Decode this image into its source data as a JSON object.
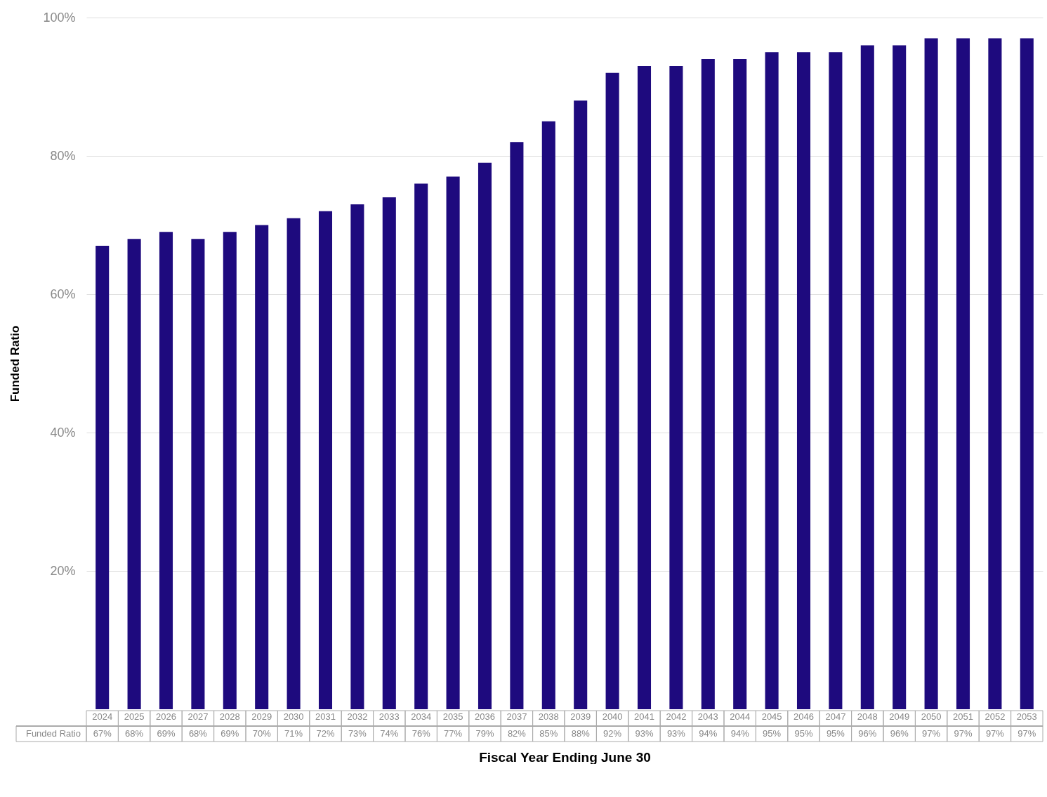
{
  "chart_data": {
    "type": "bar",
    "xlabel": "Fiscal Year Ending June 30",
    "ylabel": "Funded Ratio",
    "categories": [
      "2024",
      "2025",
      "2026",
      "2027",
      "2028",
      "2029",
      "2030",
      "2031",
      "2032",
      "2033",
      "2034",
      "2035",
      "2036",
      "2037",
      "2038",
      "2039",
      "2040",
      "2041",
      "2042",
      "2043",
      "2044",
      "2045",
      "2046",
      "2047",
      "2048",
      "2049",
      "2050",
      "2051",
      "2052",
      "2053"
    ],
    "series": [
      {
        "name": "Funded Ratio",
        "color": "#1e0a7e",
        "values": [
          67,
          68,
          69,
          68,
          69,
          70,
          71,
          72,
          73,
          74,
          76,
          77,
          79,
          82,
          85,
          88,
          92,
          93,
          93,
          94,
          94,
          95,
          95,
          95,
          96,
          96,
          97,
          97,
          97,
          97
        ],
        "value_labels": [
          "67%",
          "68%",
          "69%",
          "68%",
          "69%",
          "70%",
          "71%",
          "72%",
          "73%",
          "74%",
          "76%",
          "77%",
          "79%",
          "82%",
          "85%",
          "88%",
          "92%",
          "93%",
          "93%",
          "94%",
          "94%",
          "95%",
          "95%",
          "95%",
          "96%",
          "96%",
          "97%",
          "97%",
          "97%",
          "97%"
        ]
      }
    ],
    "ylim": [
      0,
      100
    ],
    "yticks": [
      {
        "value": 20,
        "label": "20%"
      },
      {
        "value": 40,
        "label": "40%"
      },
      {
        "value": 60,
        "label": "60%"
      },
      {
        "value": 80,
        "label": "80%"
      },
      {
        "value": 100,
        "label": "100%"
      }
    ],
    "grid": "y",
    "legend": false
  }
}
